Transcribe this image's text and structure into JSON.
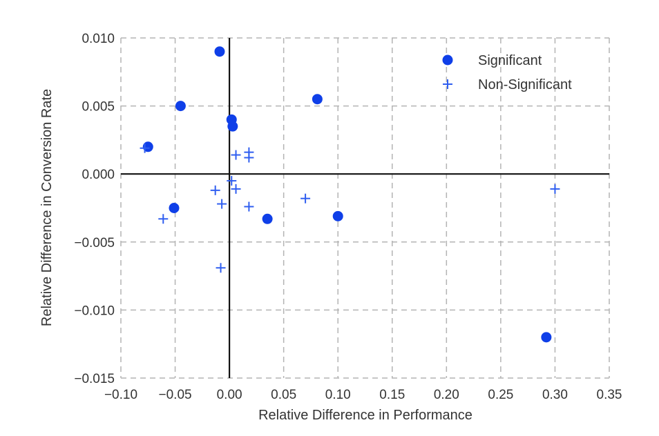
{
  "chart_data": {
    "type": "scatter",
    "title": "",
    "xlabel": "Relative Difference in Performance",
    "ylabel": "Relative Difference in Conversion Rate",
    "xlim": [
      -0.1,
      0.35
    ],
    "ylim": [
      -0.015,
      0.01
    ],
    "x_ticks": [
      "−0.10",
      "−0.05",
      "0.00",
      "0.05",
      "0.10",
      "0.15",
      "0.20",
      "0.25",
      "0.30",
      "0.35"
    ],
    "x_tick_values": [
      -0.1,
      -0.05,
      0.0,
      0.05,
      0.1,
      0.15,
      0.2,
      0.25,
      0.3,
      0.35
    ],
    "y_ticks": [
      "−0.015",
      "−0.010",
      "−0.005",
      "0.000",
      "0.005",
      "0.010"
    ],
    "y_tick_values": [
      -0.015,
      -0.01,
      -0.005,
      0.0,
      0.005,
      0.01
    ],
    "grid": true,
    "legend_position": "top-right",
    "series": [
      {
        "name": "Significant",
        "marker": "circle",
        "color": "#0f3fe8",
        "points": [
          {
            "x": -0.009,
            "y": 0.009
          },
          {
            "x": -0.045,
            "y": 0.005
          },
          {
            "x": -0.075,
            "y": 0.002
          },
          {
            "x": 0.002,
            "y": 0.004
          },
          {
            "x": 0.003,
            "y": 0.0035
          },
          {
            "x": 0.081,
            "y": 0.0055
          },
          {
            "x": -0.051,
            "y": -0.0025
          },
          {
            "x": 0.035,
            "y": -0.0033
          },
          {
            "x": 0.1,
            "y": -0.0031
          },
          {
            "x": 0.292,
            "y": -0.012
          }
        ]
      },
      {
        "name": "Non-Significant",
        "marker": "plus",
        "color": "#2f5ef0",
        "points": [
          {
            "x": -0.078,
            "y": 0.0019
          },
          {
            "x": 0.006,
            "y": 0.0014
          },
          {
            "x": 0.018,
            "y": 0.0016
          },
          {
            "x": 0.018,
            "y": 0.0012
          },
          {
            "x": 0.002,
            "y": -0.0005
          },
          {
            "x": -0.013,
            "y": -0.0012
          },
          {
            "x": 0.006,
            "y": -0.0011
          },
          {
            "x": -0.007,
            "y": -0.0022
          },
          {
            "x": 0.018,
            "y": -0.0024
          },
          {
            "x": 0.07,
            "y": -0.0018
          },
          {
            "x": -0.061,
            "y": -0.0033
          },
          {
            "x": -0.008,
            "y": -0.0069
          },
          {
            "x": 0.3,
            "y": -0.0011
          }
        ]
      }
    ]
  }
}
